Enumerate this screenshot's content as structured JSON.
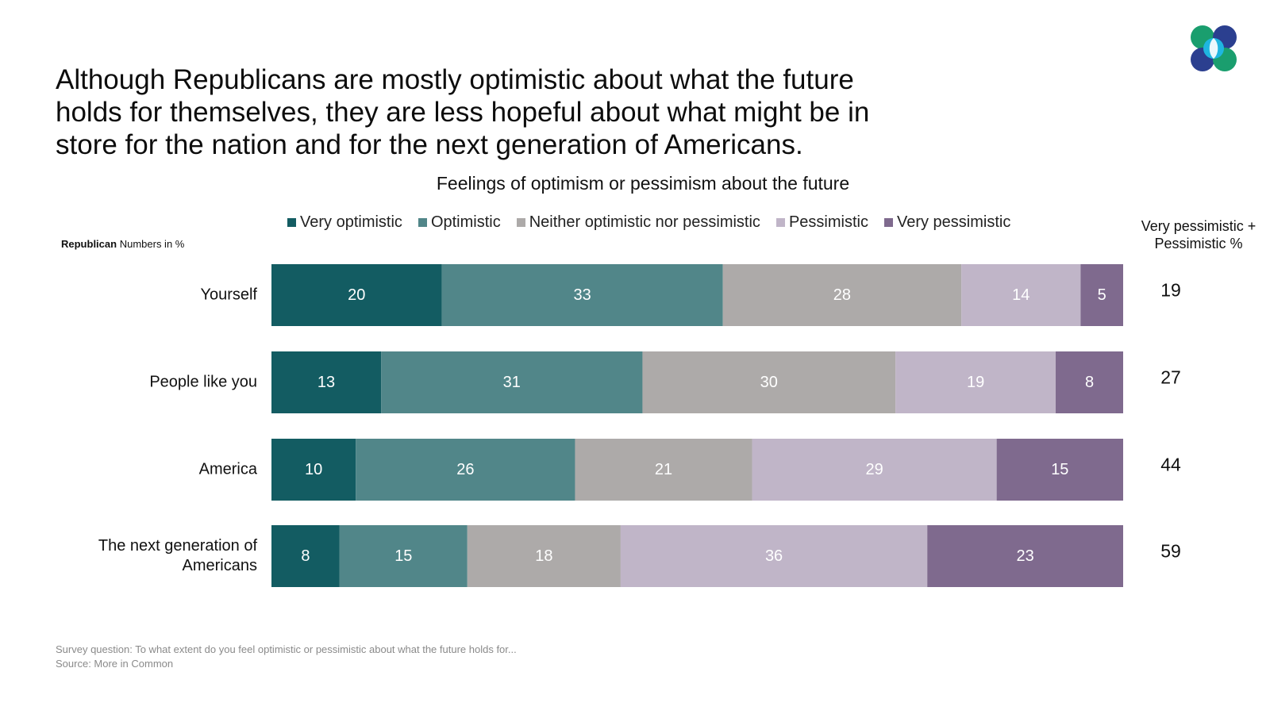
{
  "headline": {
    "lines": [
      "Although Republicans are mostly optimistic about what the future",
      "holds for themselves, they are less hopeful about what might be in",
      "store for the nation and for the next generation of Americans."
    ]
  },
  "group_label": {
    "bold": "Republican",
    "rest": "Numbers in %"
  },
  "sum_column": {
    "header_lines": [
      "Very pessimistic +",
      "Pessimistic %"
    ]
  },
  "footnote": {
    "question": "Survey question: To what extent do you feel optimistic or pessimistic about what the future holds for...",
    "source": "Source: More in Common"
  },
  "logo": {
    "icon": "more-in-common-logo-icon",
    "colors": [
      "#1a9e6e",
      "#1fb6e0",
      "#2b3f8f",
      "#1a9e6e"
    ]
  },
  "chart_data": {
    "type": "bar",
    "orientation": "horizontal",
    "stacked": true,
    "title": "Feelings of optimism or pessimism about the future",
    "categories": [
      "Yourself",
      "People like you",
      "America",
      "The next generation of Americans"
    ],
    "category_label_lines": [
      [
        "Yourself"
      ],
      [
        "People like you"
      ],
      [
        "America"
      ],
      [
        "The next generation of",
        "Americans"
      ]
    ],
    "series": [
      {
        "name": "Very optimistic",
        "color": "#135c62",
        "values": [
          20,
          13,
          10,
          8
        ]
      },
      {
        "name": "Optimistic",
        "color": "#518689",
        "values": [
          33,
          31,
          26,
          15
        ]
      },
      {
        "name": "Neither optimistic nor pessimistic",
        "color": "#adaaa9",
        "values": [
          28,
          30,
          21,
          18
        ]
      },
      {
        "name": "Pessimistic",
        "color": "#c0b5c8",
        "values": [
          14,
          19,
          29,
          36
        ]
      },
      {
        "name": "Very pessimistic",
        "color": "#7f6a8e",
        "values": [
          5,
          8,
          15,
          23
        ]
      }
    ],
    "very_pessimistic_plus_pessimistic": [
      19,
      27,
      44,
      59
    ],
    "legend_position": "top",
    "grid": false
  }
}
